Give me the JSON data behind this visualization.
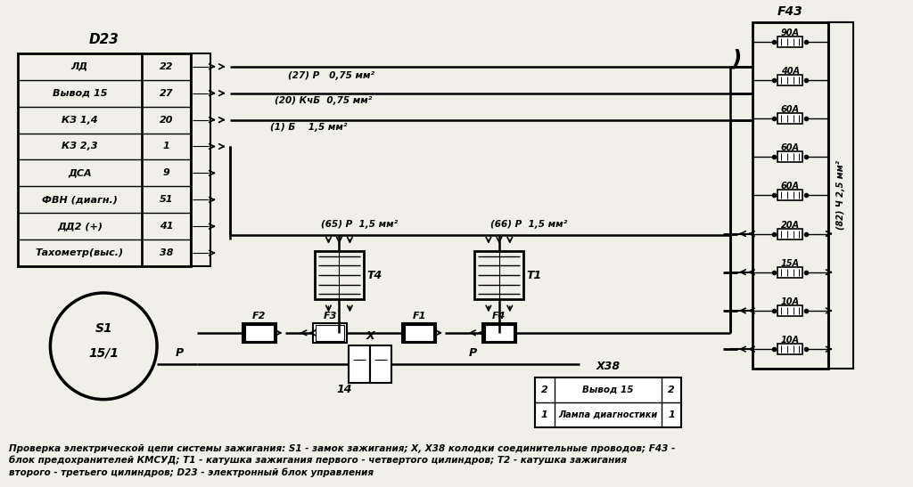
{
  "bg_color": "#f0f0e8",
  "title": "D23",
  "d23_rows": [
    [
      "ЛД",
      "22"
    ],
    [
      "Вывод 15",
      "27"
    ],
    [
      "КЗ 1,4",
      "20"
    ],
    [
      "КЗ 2,3",
      "1"
    ],
    [
      "ДСА",
      "9"
    ],
    [
      "ФВН (диагн.)",
      "51"
    ],
    [
      "ДД2 (+)",
      "41"
    ],
    [
      "Тахометр(выс.)",
      "38"
    ]
  ],
  "f43_label": "F43",
  "f43_fuses": [
    "90А",
    "40А",
    "60А",
    "60А",
    "60А",
    "20А",
    "15А",
    "10А",
    "10А"
  ],
  "f43_wire_label": "(82) Ч 2,5 мм²",
  "wire27_label": "(27) Р   0,75 мм²",
  "wire20_label": "(20) КчБ  0,75 мм²",
  "wire1_label": "(1) Б    1,5 мм²",
  "wire65_label": "(65) Р  1,5 мм²",
  "wire66_label": "(66) Р  1,5 мм²",
  "t4_label": "T4",
  "t1_label": "T1",
  "f2_label": "F2",
  "f3_label": "F3",
  "f1_label": "F1",
  "f4_label": "F4",
  "s1_label": "S1",
  "s1_inner": "15/1",
  "x_label": "X",
  "x14_label": "14",
  "x38_label": "X38",
  "p_label1": "P",
  "p_label2": "P",
  "x38_row1": [
    "2",
    "Вывод 15",
    "2"
  ],
  "x38_row2": [
    "1",
    "Лампа диагностики",
    "1"
  ],
  "footnote": "Проверка электрической цепи системы зажигания: S1 - замок зажигания; X, X38 колодки соединительные проводов; F43 -\nблок предохранителей КМСУД; Т1 - катушка зажигания первого - четвертого цилиндров; Т2 - катушка зажигания\nвторого - третьего цилиндров; D23 - электронный блок управления"
}
